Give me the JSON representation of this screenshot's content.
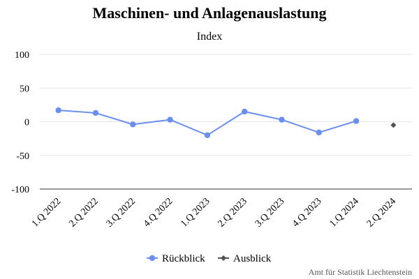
{
  "chart_data": {
    "type": "line",
    "title": "Maschinen- und Anlagenauslastung",
    "subtitle": "Index",
    "xlabel": "",
    "ylabel": "",
    "ylim": [
      -100,
      100
    ],
    "yticks": [
      100,
      50,
      0,
      -50,
      -100
    ],
    "grid": true,
    "legend_position": "bottom-center",
    "categories": [
      "1.Q 2022",
      "2.Q 2022",
      "3.Q 2022",
      "4.Q 2022",
      "1.Q 2023",
      "2.Q 2023",
      "3.Q 2023",
      "4.Q 2023",
      "1.Q 2024",
      "2.Q 2024"
    ],
    "series": [
      {
        "name": "Rückblick",
        "color": "#6a8ff0",
        "marker": "circle",
        "values": [
          17,
          13,
          -4,
          3,
          -20,
          15,
          3,
          -16,
          1,
          null
        ]
      },
      {
        "name": "Ausblick",
        "color": "#505050",
        "marker": "diamond",
        "values": [
          null,
          null,
          null,
          null,
          null,
          null,
          null,
          null,
          null,
          -5
        ]
      }
    ],
    "credit": "Amt für Statistik Liechtenstein"
  }
}
